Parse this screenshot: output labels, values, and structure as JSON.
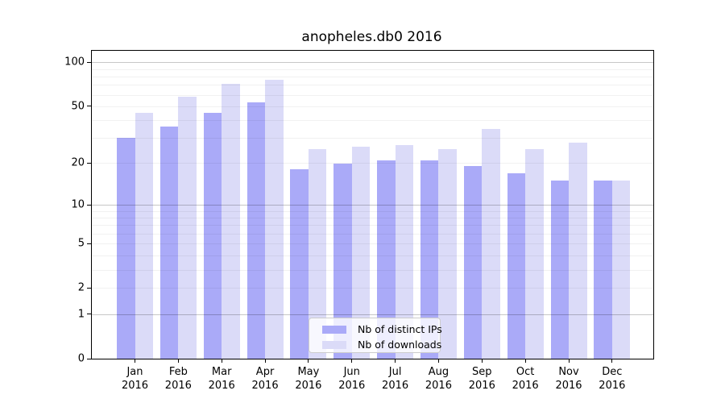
{
  "chart_data": {
    "type": "bar",
    "title": "anopheles.db0 2016",
    "categories": [
      "Jan 2016",
      "Feb 2016",
      "Mar 2016",
      "Apr 2016",
      "May 2016",
      "Jun 2016",
      "Jul 2016",
      "Aug 2016",
      "Sep 2016",
      "Oct 2016",
      "Nov 2016",
      "Dec 2016"
    ],
    "series": [
      {
        "name": "Nb of distinct IPs",
        "color": "#aaaaf8",
        "values": [
          30,
          36,
          45,
          53,
          18,
          20,
          21,
          21,
          19,
          17,
          15,
          15
        ]
      },
      {
        "name": "Nb of downloads",
        "color": "#dbdbf8",
        "values": [
          45,
          58,
          71,
          76,
          25,
          26,
          27,
          25,
          35,
          25,
          28,
          15
        ]
      }
    ],
    "xlabel": "",
    "ylabel": "",
    "yscale": "log1p",
    "ylim": [
      0,
      120
    ],
    "yticks": [
      0,
      1,
      2,
      5,
      10,
      20,
      50,
      100
    ],
    "grid": {
      "orientation": "horizontal",
      "major_lines": [
        1,
        10,
        100
      ],
      "minor_lines": [
        2,
        3,
        4,
        5,
        6,
        7,
        8,
        9,
        20,
        30,
        40,
        50,
        60,
        70,
        80,
        90
      ]
    },
    "legend_position": "bottom-center",
    "background_color": "#ffffff",
    "axis_color": "#000000"
  }
}
